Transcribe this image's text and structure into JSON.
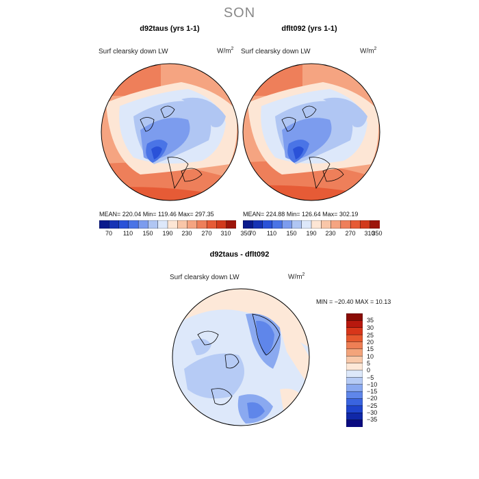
{
  "figure": {
    "season": "SON"
  },
  "colors": {
    "abs_scale": [
      "#0a1a8c",
      "#1633b5",
      "#2a52d8",
      "#4a74e6",
      "#7c9cee",
      "#b0c6f3",
      "#dde8fa",
      "#fde6d5",
      "#f9c6a8",
      "#f5a481",
      "#ee7f5a",
      "#e65b36",
      "#d13a1c",
      "#9c150a"
    ],
    "diff_scale": [
      "#0a0a80",
      "#1028a8",
      "#1f44cc",
      "#3a64e0",
      "#5f86ea",
      "#8aa9f0",
      "#b6cbf5",
      "#dde8fa",
      "#fde8d8",
      "#f8c9aa",
      "#f3a47b",
      "#ee7f55",
      "#e6582e",
      "#d8361a",
      "#b8180e",
      "#8a0c05"
    ],
    "land": "#000000"
  },
  "panels": [
    {
      "title": "d92taus (yrs 1-1)",
      "variable": "Surf clearsky down LW",
      "unit_base": "W/m",
      "unit_exp": "2",
      "stats_text": "MEAN= 220.04   Min= 119.46   Max= 297.35"
    },
    {
      "title": "dflt092 (yrs 1-1)",
      "variable": "Surf clearsky down LW",
      "unit_base": "W/m",
      "unit_exp": "2",
      "stats_text": "MEAN= 224.88   Min= 126.64   Max= 302.19"
    },
    {
      "title": "d92taus - dflt092",
      "variable": "Surf clearsky down LW",
      "unit_base": "W/m",
      "unit_exp": "2",
      "stats_text": "MIN = −20.40 MAX =  10.13"
    }
  ],
  "abs_colorbar": {
    "tick_labels": [
      "70",
      "110",
      "150",
      "190",
      "230",
      "270",
      "310",
      "350"
    ]
  },
  "diff_colorbar": {
    "labels": [
      "35",
      "30",
      "25",
      "20",
      "15",
      "10",
      "5",
      "0",
      "−5",
      "−10",
      "−15",
      "−20",
      "−25",
      "−30",
      "−35"
    ]
  }
}
